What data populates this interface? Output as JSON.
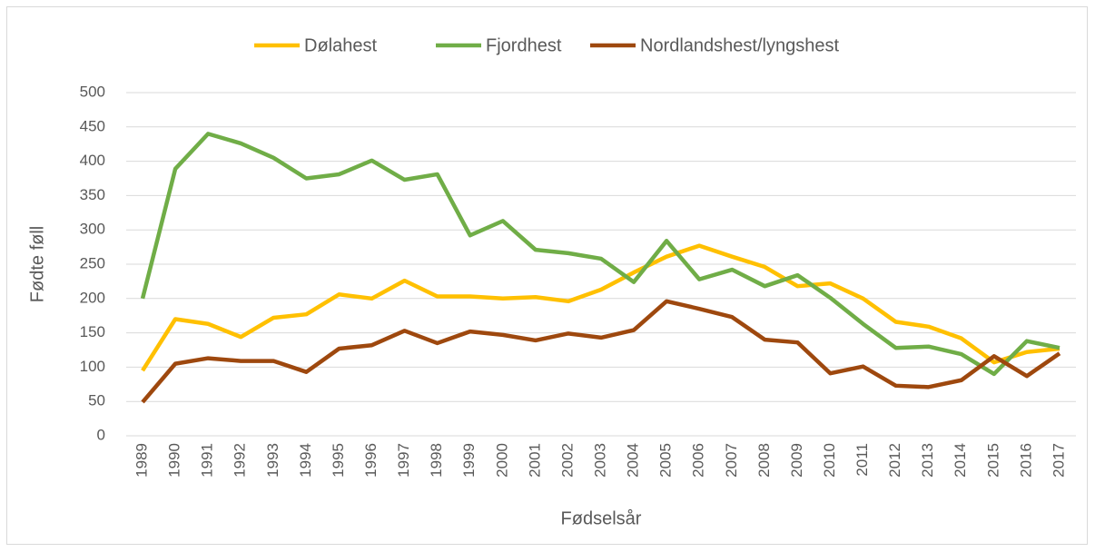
{
  "chart_data": {
    "type": "line",
    "categories": [
      "1989",
      "1990",
      "1991",
      "1992",
      "1993",
      "1994",
      "1995",
      "1996",
      "1997",
      "1998",
      "1999",
      "2000",
      "2001",
      "2002",
      "2003",
      "2004",
      "2005",
      "2006",
      "2007",
      "2008",
      "2009",
      "2010",
      "2011",
      "2012",
      "2013",
      "2014",
      "2015",
      "2016",
      "2017"
    ],
    "series": [
      {
        "name": "Dølahest",
        "color": "#ffc000",
        "values": [
          95,
          170,
          163,
          144,
          172,
          177,
          206,
          200,
          226,
          203,
          203,
          200,
          202,
          196,
          213,
          238,
          261,
          277,
          261,
          246,
          218,
          222,
          200,
          166,
          159,
          142,
          107,
          122,
          127
        ]
      },
      {
        "name": "Fjordhest",
        "color": "#70ad47",
        "values": [
          200,
          389,
          440,
          426,
          405,
          375,
          381,
          401,
          373,
          381,
          292,
          313,
          271,
          266,
          258,
          224,
          284,
          228,
          242,
          218,
          234,
          201,
          163,
          128,
          130,
          119,
          90,
          138,
          128
        ]
      },
      {
        "name": "Nordlandshest/lyngshest",
        "color": "#9e480e",
        "values": [
          49,
          105,
          113,
          109,
          109,
          93,
          127,
          132,
          153,
          135,
          152,
          147,
          139,
          149,
          143,
          154,
          196,
          185,
          173,
          140,
          136,
          91,
          101,
          73,
          71,
          81,
          116,
          87,
          120
        ]
      }
    ],
    "ylim": [
      0,
      500
    ],
    "yticks": [
      0,
      50,
      100,
      150,
      200,
      250,
      300,
      350,
      400,
      450,
      500
    ],
    "y_label": "Fødte føll",
    "x_label": "Fødselsår",
    "grid": true,
    "legend": "top"
  }
}
